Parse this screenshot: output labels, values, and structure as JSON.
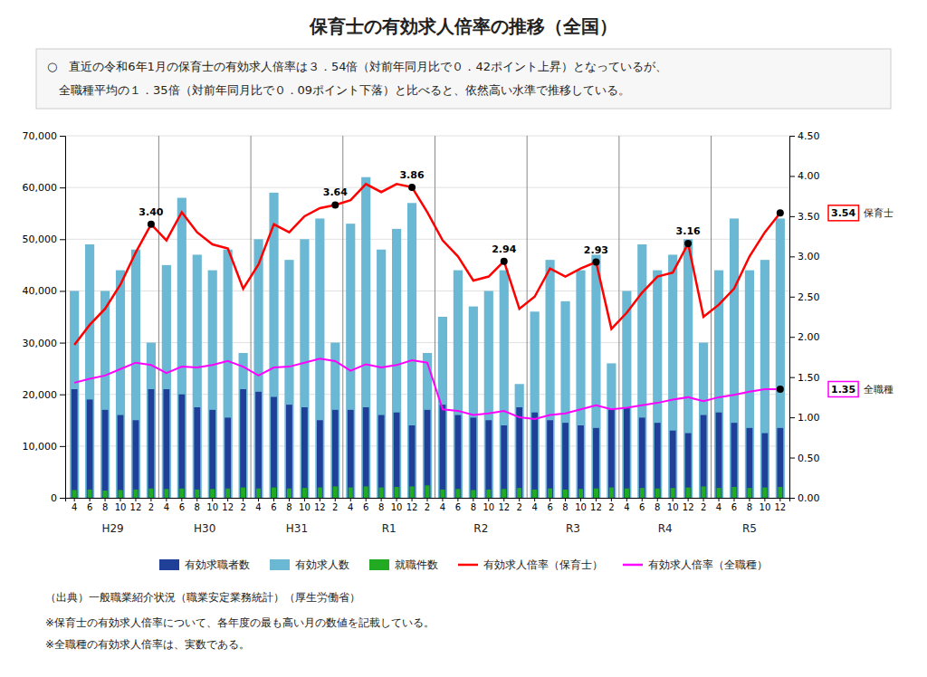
{
  "chart_data": {
    "type": "bar",
    "title": "保育士の有効求人倍率の推移（全国）",
    "annotations": [
      "○　直近の令和6年1月の保育士の有効求人倍率は３．54倍（対前年同月比で０．42ポイント上昇）となっているが、",
      "　全職種平均の１．35倍（対前年同月比で０．09ポイント下落）と比べると、依然高い水準で推移している。"
    ],
    "notes": [
      "（出典）一般職業紹介状況（職業安定業務統計）（厚生労働省）",
      "※保育士の有効求人倍率について、各年度の最も高い月の数値を記載している。",
      "※全職種の有効求人倍率は、実数である。"
    ],
    "categories": [
      "4",
      "6",
      "8",
      "10",
      "12",
      "2",
      "4",
      "6",
      "8",
      "10",
      "12",
      "2",
      "4",
      "6",
      "8",
      "10",
      "12",
      "2",
      "4",
      "6",
      "8",
      "10",
      "12",
      "2",
      "4",
      "6",
      "8",
      "10",
      "12",
      "2",
      "4",
      "6",
      "8",
      "10",
      "12",
      "2",
      "4",
      "6",
      "8",
      "10",
      "12",
      "2",
      "4",
      "6",
      "8",
      "10",
      "12"
    ],
    "category_groups": [
      "H29",
      "H29",
      "H29",
      "H29",
      "H29",
      "H29",
      "H30",
      "H30",
      "H30",
      "H30",
      "H30",
      "H30",
      "H31",
      "H31",
      "H31",
      "H31",
      "H31",
      "H31",
      "R1",
      "R1",
      "R1",
      "R1",
      "R1",
      "R1",
      "R2",
      "R2",
      "R2",
      "R2",
      "R2",
      "R2",
      "R3",
      "R3",
      "R3",
      "R3",
      "R3",
      "R3",
      "R4",
      "R4",
      "R4",
      "R4",
      "R4",
      "R4",
      "R5",
      "R5",
      "R5",
      "R5",
      "R5"
    ],
    "series": [
      {
        "name": "有効求職者数",
        "type": "bar",
        "color": "#1F3F99",
        "values": [
          21000,
          19000,
          17000,
          16000,
          15000,
          21000,
          21000,
          20000,
          17500,
          17000,
          15500,
          21000,
          20500,
          19500,
          18000,
          17500,
          15000,
          17000,
          17000,
          17500,
          16000,
          16500,
          14000,
          17000,
          18000,
          16000,
          15500,
          15000,
          14000,
          17500,
          16500,
          15000,
          14500,
          14000,
          13500,
          17000,
          17500,
          15500,
          14500,
          13000,
          12500,
          16000,
          16500,
          14500,
          13500,
          12500,
          13500
        ]
      },
      {
        "name": "有効求人数",
        "type": "bar",
        "color": "#6BB8D4",
        "values": [
          40000,
          49000,
          40000,
          44000,
          48000,
          30000,
          45000,
          58000,
          47000,
          44000,
          48000,
          28000,
          50000,
          59000,
          46000,
          50000,
          54000,
          30000,
          53000,
          62000,
          48000,
          52000,
          57000,
          28000,
          35000,
          44000,
          37000,
          40000,
          44000,
          22000,
          36000,
          46000,
          38000,
          44000,
          47000,
          26000,
          40000,
          49000,
          44000,
          47000,
          50000,
          30000,
          44000,
          54000,
          44000,
          46000,
          54000
        ]
      },
      {
        "name": "就職件数",
        "type": "bar",
        "color": "#22AA22",
        "values": [
          1500,
          1600,
          1400,
          1500,
          1600,
          1800,
          1700,
          1800,
          1600,
          1700,
          1800,
          2000,
          1800,
          2000,
          1800,
          1900,
          2000,
          2200,
          2000,
          2200,
          2000,
          2100,
          2200,
          2400,
          1600,
          1700,
          1500,
          1600,
          1700,
          1900,
          1600,
          1800,
          1600,
          1700,
          1800,
          2000,
          1800,
          1900,
          1800,
          1900,
          2000,
          2200,
          1900,
          2100,
          1900,
          2000,
          2100
        ]
      },
      {
        "name": "有効求人倍率（保育士）",
        "type": "line",
        "axis": "y2",
        "color": "#FF0000",
        "values": [
          1.9,
          2.15,
          2.35,
          2.65,
          3.05,
          3.4,
          3.2,
          3.55,
          3.3,
          3.15,
          3.1,
          2.6,
          2.9,
          3.4,
          3.3,
          3.5,
          3.6,
          3.64,
          3.7,
          3.9,
          3.8,
          3.9,
          3.86,
          3.55,
          3.2,
          3.0,
          2.7,
          2.75,
          2.94,
          2.35,
          2.5,
          2.85,
          2.75,
          2.85,
          2.93,
          2.1,
          2.3,
          2.55,
          2.75,
          2.8,
          3.16,
          2.25,
          2.4,
          2.6,
          3.0,
          3.3,
          3.54
        ],
        "value_labels": [
          null,
          null,
          null,
          null,
          null,
          "3.40",
          null,
          null,
          null,
          null,
          null,
          null,
          null,
          null,
          null,
          null,
          null,
          "3.64",
          null,
          null,
          null,
          null,
          "3.86",
          null,
          null,
          null,
          null,
          null,
          "2.94",
          null,
          null,
          null,
          null,
          null,
          "2.93",
          null,
          null,
          null,
          null,
          null,
          "3.16",
          null,
          null,
          null,
          null,
          null,
          null
        ],
        "end_value_label": "3.54",
        "end_label": "保育士"
      },
      {
        "name": "有効求人倍率（全職種）",
        "type": "line",
        "axis": "y2",
        "color": "#FF00FF",
        "values": [
          1.43,
          1.48,
          1.52,
          1.6,
          1.68,
          1.65,
          1.55,
          1.63,
          1.62,
          1.65,
          1.7,
          1.63,
          1.52,
          1.62,
          1.63,
          1.68,
          1.73,
          1.7,
          1.58,
          1.66,
          1.62,
          1.65,
          1.71,
          1.68,
          1.1,
          1.08,
          1.03,
          1.05,
          1.08,
          1.0,
          0.98,
          1.03,
          1.05,
          1.1,
          1.15,
          1.1,
          1.12,
          1.15,
          1.18,
          1.22,
          1.25,
          1.2,
          1.25,
          1.28,
          1.32,
          1.35,
          1.35
        ],
        "end_value_label": "1.35",
        "end_label": "全職種"
      }
    ],
    "ylim": [
      0,
      70000
    ],
    "yticks": [
      0,
      {
        "value": 10000,
        "label": "10,000"
      },
      {
        "value": 20000,
        "label": "20,000"
      },
      {
        "value": 30000,
        "label": "30,000"
      },
      {
        "value": 40000,
        "label": "40,000"
      },
      {
        "value": 50000,
        "label": "50,000"
      },
      {
        "value": 60000,
        "label": "60,000"
      },
      {
        "value": 70000,
        "label": "70,000"
      }
    ],
    "y2lim": [
      0.0,
      4.5
    ],
    "y2ticks": [
      {
        "value": 0.0,
        "label": "0.00"
      },
      {
        "value": 0.5,
        "label": "0.50"
      },
      {
        "value": 1.0,
        "label": "1.00"
      },
      {
        "value": 1.5,
        "label": "1.50"
      },
      {
        "value": 2.0,
        "label": "2.00"
      },
      {
        "value": 2.5,
        "label": "2.50"
      },
      {
        "value": 3.0,
        "label": "3.00"
      },
      {
        "value": 3.5,
        "label": "3.50"
      },
      {
        "value": 4.0,
        "label": "4.00"
      },
      {
        "value": 4.5,
        "label": "4.50"
      }
    ],
    "grid": true,
    "legend": "bottom"
  }
}
